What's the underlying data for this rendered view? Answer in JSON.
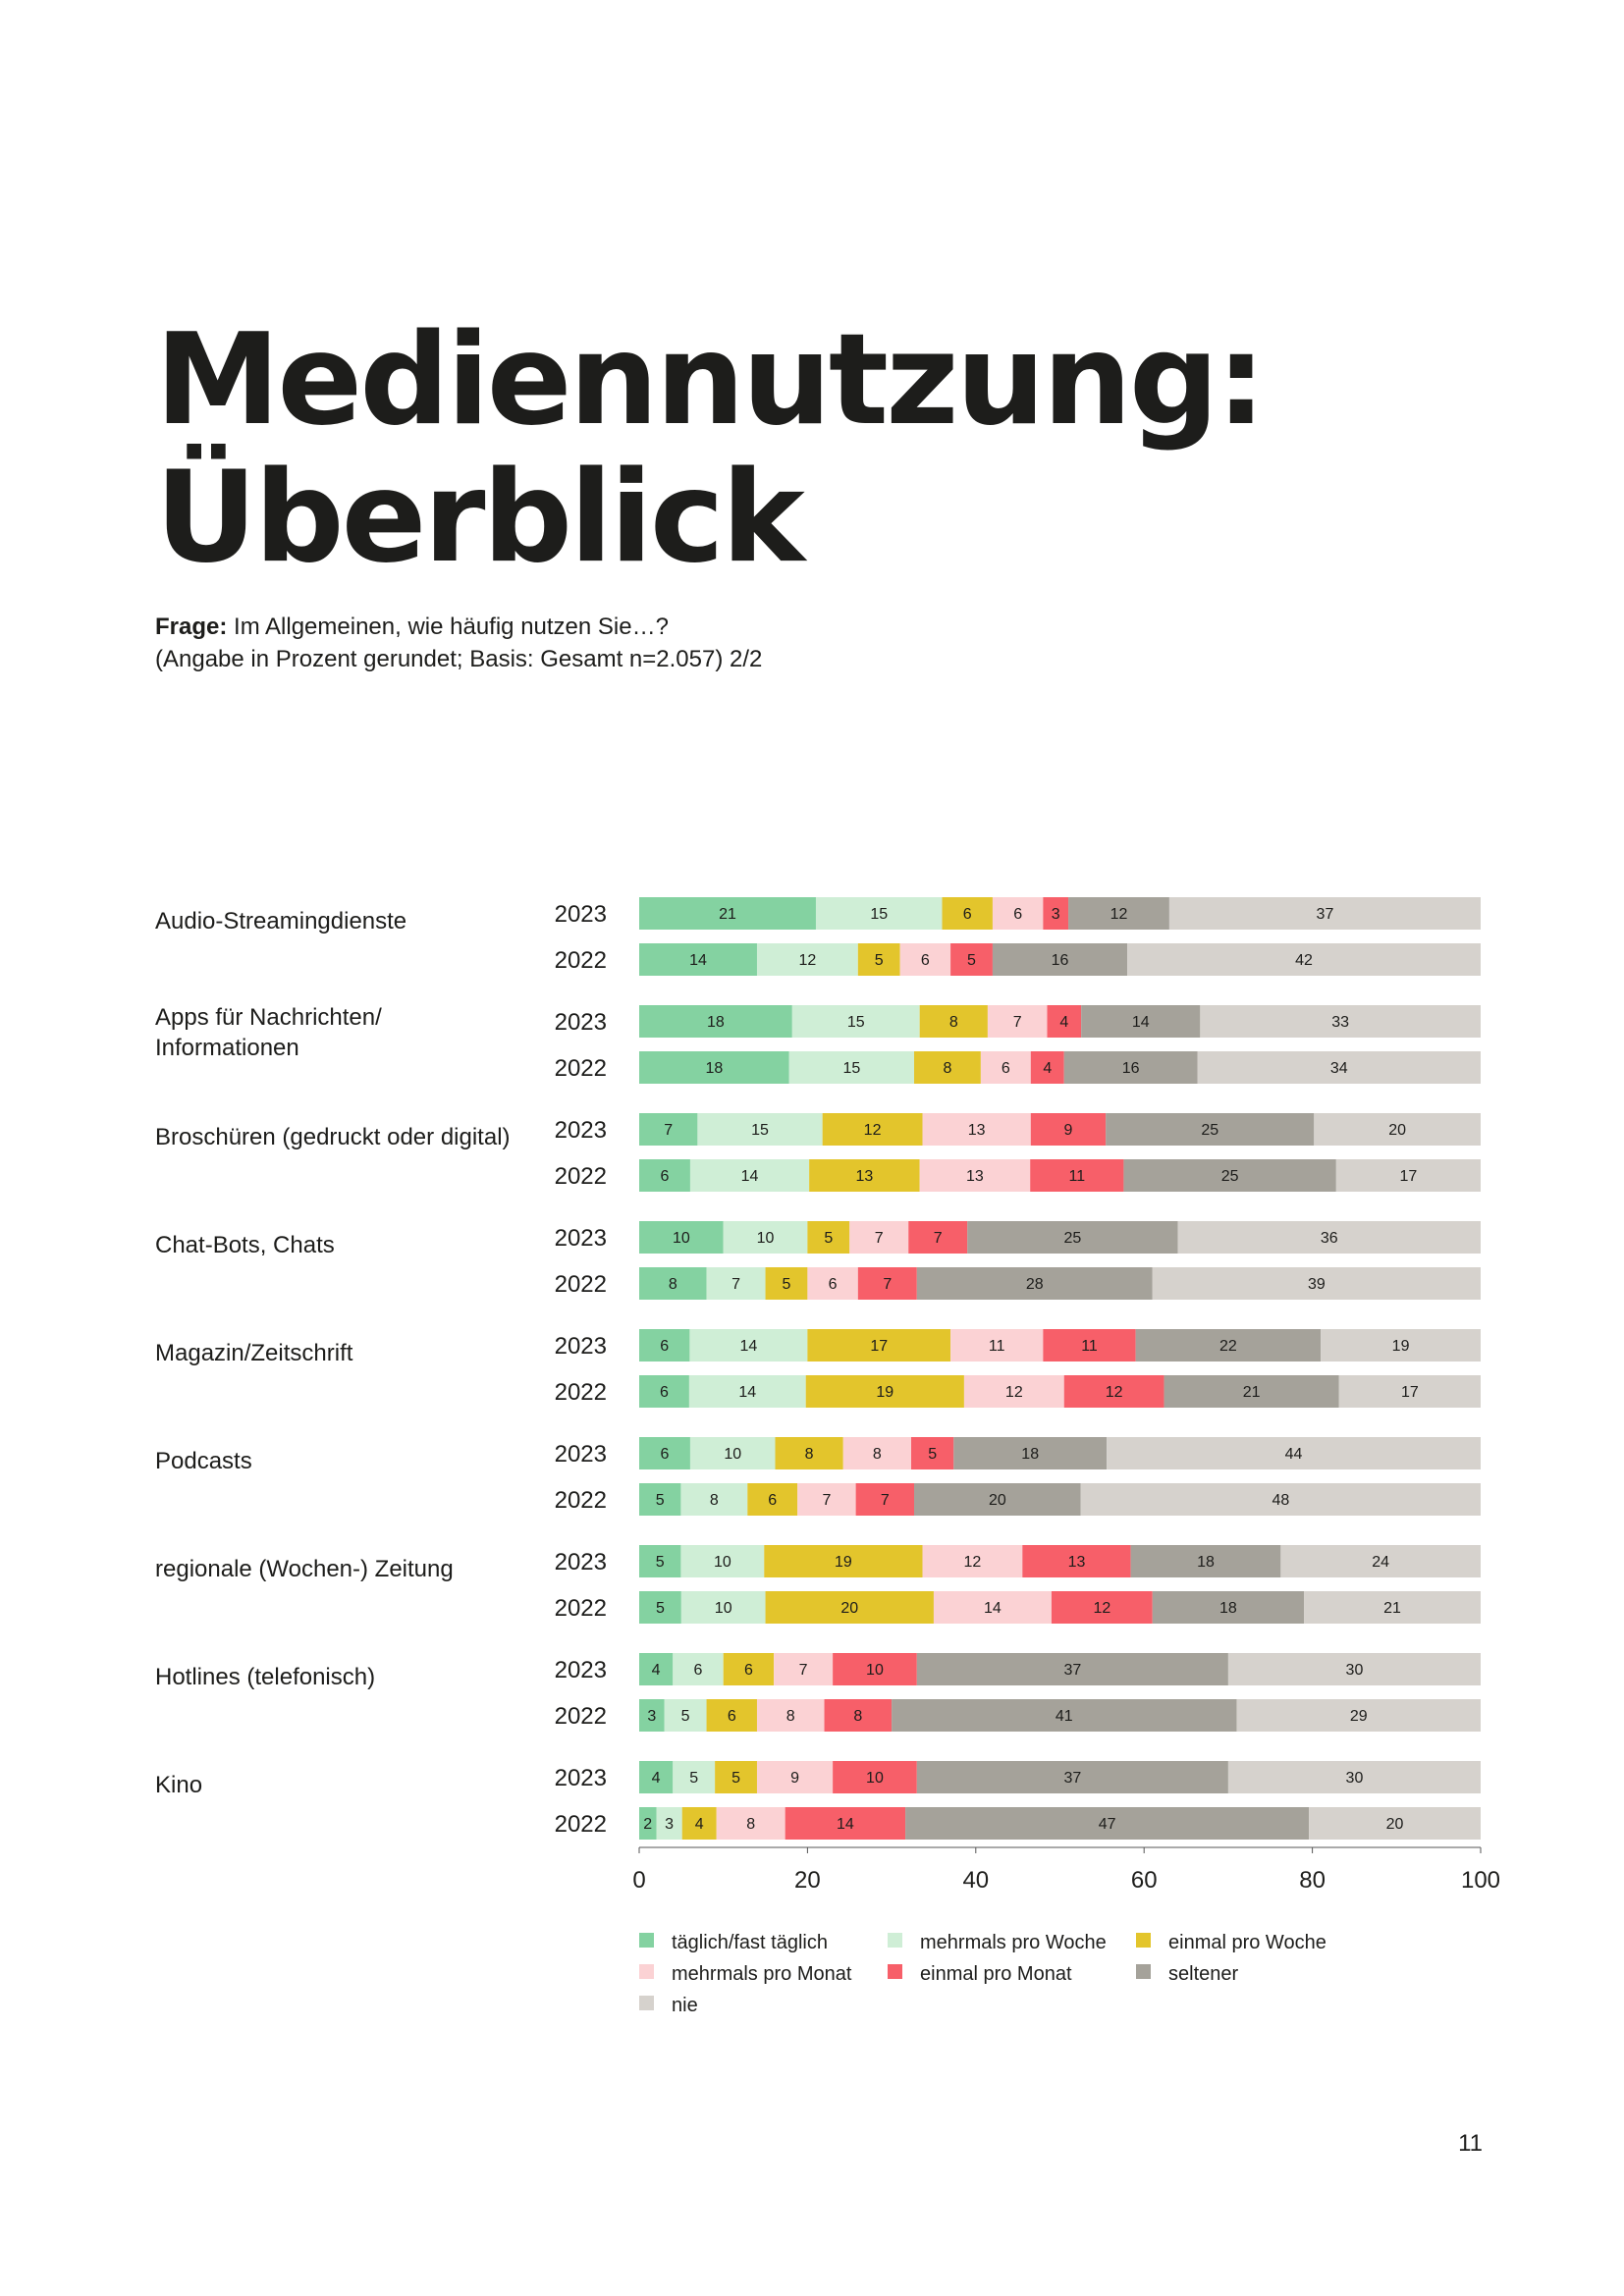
{
  "page": {
    "title_line1": "Mediennutzung:",
    "title_line2": "Überblick",
    "question_label": "Frage:",
    "question_text": "Im Allgemeinen, wie häufig nutzen Sie…?",
    "basis_text": "(Angabe in Prozent gerundet; Basis: Gesamt n=2.057) 2/2",
    "page_number": "11"
  },
  "chart_data": {
    "type": "bar",
    "orientation": "horizontal",
    "stacked": true,
    "title": "Mediennutzung: Überblick",
    "xlabel": "",
    "ylabel": "",
    "xlim": [
      0,
      100
    ],
    "xticks": [
      0,
      20,
      40,
      60,
      80,
      100
    ],
    "legend_position": "bottom",
    "series_names": [
      "täglich/fast täglich",
      "mehrmals pro Woche",
      "einmal pro Woche",
      "mehrmals pro Monat",
      "einmal pro Monat",
      "seltener",
      "nie"
    ],
    "colors": [
      "#84d2a1",
      "#cfeed6",
      "#e3c52c",
      "#fbd2d4",
      "#f75f69",
      "#a5a29a",
      "#d6d2cd"
    ],
    "categories": [
      {
        "label": "Audio-Streamingdienste",
        "rows": [
          {
            "year": "2023",
            "values": [
              21,
              15,
              6,
              6,
              3,
              12,
              37
            ]
          },
          {
            "year": "2022",
            "values": [
              14,
              12,
              5,
              6,
              5,
              16,
              42
            ]
          }
        ]
      },
      {
        "label": "Apps für Nachrichten/ Informationen",
        "rows": [
          {
            "year": "2023",
            "values": [
              18,
              15,
              8,
              7,
              4,
              14,
              33
            ]
          },
          {
            "year": "2022",
            "values": [
              18,
              15,
              8,
              6,
              4,
              16,
              34
            ]
          }
        ]
      },
      {
        "label": "Broschüren (gedruckt oder digital)",
        "rows": [
          {
            "year": "2023",
            "values": [
              7,
              15,
              12,
              13,
              9,
              25,
              20
            ]
          },
          {
            "year": "2022",
            "values": [
              6,
              14,
              13,
              13,
              11,
              25,
              17
            ]
          }
        ]
      },
      {
        "label": "Chat-Bots, Chats",
        "rows": [
          {
            "year": "2023",
            "values": [
              10,
              10,
              5,
              7,
              7,
              25,
              36
            ]
          },
          {
            "year": "2022",
            "values": [
              8,
              7,
              5,
              6,
              7,
              28,
              39
            ]
          }
        ]
      },
      {
        "label": "Magazin/Zeitschrift",
        "rows": [
          {
            "year": "2023",
            "values": [
              6,
              14,
              17,
              11,
              11,
              22,
              19
            ]
          },
          {
            "year": "2022",
            "values": [
              6,
              14,
              19,
              12,
              12,
              21,
              17
            ]
          }
        ]
      },
      {
        "label": "Podcasts",
        "rows": [
          {
            "year": "2023",
            "values": [
              6,
              10,
              8,
              8,
              5,
              18,
              44
            ]
          },
          {
            "year": "2022",
            "values": [
              5,
              8,
              6,
              7,
              7,
              20,
              48
            ]
          }
        ]
      },
      {
        "label": "regionale (Wochen-) Zeitung",
        "rows": [
          {
            "year": "2023",
            "values": [
              5,
              10,
              19,
              12,
              13,
              18,
              24
            ]
          },
          {
            "year": "2022",
            "values": [
              5,
              10,
              20,
              14,
              12,
              18,
              21
            ]
          }
        ]
      },
      {
        "label": "Hotlines (telefonisch)",
        "rows": [
          {
            "year": "2023",
            "values": [
              4,
              6,
              6,
              7,
              10,
              37,
              30
            ]
          },
          {
            "year": "2022",
            "values": [
              3,
              5,
              6,
              8,
              8,
              41,
              29
            ]
          }
        ]
      },
      {
        "label": "Kino",
        "rows": [
          {
            "year": "2023",
            "values": [
              4,
              5,
              5,
              9,
              10,
              37,
              30
            ]
          },
          {
            "year": "2022",
            "values": [
              2,
              3,
              4,
              8,
              14,
              47,
              20
            ]
          }
        ]
      }
    ]
  }
}
